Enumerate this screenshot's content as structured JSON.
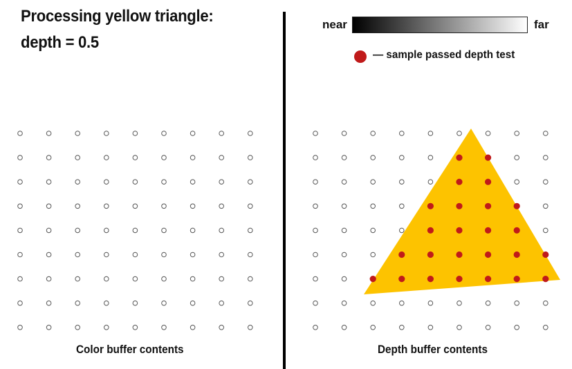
{
  "title": {
    "line1": "Processing yellow triangle:",
    "line2": "depth = 0.5"
  },
  "legend": {
    "near_label": "near",
    "far_label": "far",
    "sample_passed_label": "— sample passed depth test",
    "gradient_from": "#000000",
    "gradient_to": "#ffffff"
  },
  "left_panel": {
    "caption": "Color buffer contents"
  },
  "right_panel": {
    "caption": "Depth buffer contents"
  },
  "grid": {
    "rows": 9,
    "cols": 9
  },
  "triangle": {
    "color": "#fdc300",
    "depth": 0.5
  },
  "passed_samples": [
    [
      1,
      5
    ],
    [
      1,
      6
    ],
    [
      2,
      5
    ],
    [
      2,
      6
    ],
    [
      3,
      4
    ],
    [
      3,
      5
    ],
    [
      3,
      6
    ],
    [
      3,
      7
    ],
    [
      4,
      4
    ],
    [
      4,
      5
    ],
    [
      4,
      6
    ],
    [
      4,
      7
    ],
    [
      5,
      3
    ],
    [
      5,
      4
    ],
    [
      5,
      5
    ],
    [
      5,
      6
    ],
    [
      5,
      7
    ],
    [
      5,
      8
    ],
    [
      6,
      2
    ],
    [
      6,
      3
    ],
    [
      6,
      4
    ],
    [
      6,
      5
    ],
    [
      6,
      6
    ],
    [
      6,
      7
    ],
    [
      6,
      8
    ]
  ],
  "colors": {
    "passed_dot": "#c01a1a",
    "empty_sample_stroke": "#555555",
    "divider": "#000000"
  }
}
